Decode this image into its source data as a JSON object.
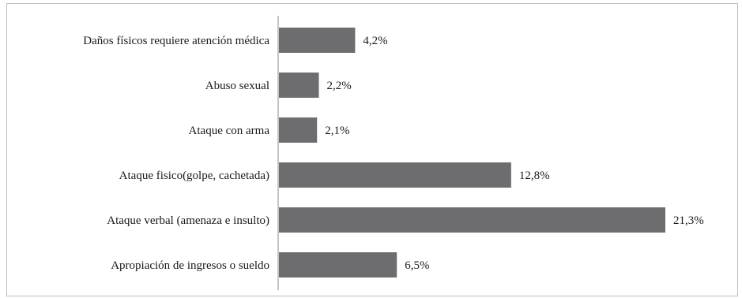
{
  "chart_data": {
    "type": "bar",
    "orientation": "horizontal",
    "categories": [
      "Daños físicos requiere atención médica",
      "Abuso sexual",
      "Ataque con arma",
      "Ataque fisico(golpe, cachetada)",
      "Ataque verbal (amenaza e insulto)",
      "Apropiación de ingresos o sueldo"
    ],
    "values": [
      4.2,
      2.2,
      2.1,
      12.8,
      21.3,
      6.5
    ],
    "data_labels": [
      "4,2%",
      "2,2%",
      "2,1%",
      "12,8%",
      "21,3%",
      "6,5%"
    ],
    "title": "",
    "xlabel": "",
    "ylabel": "",
    "xlim": [
      0,
      21.3
    ],
    "grid": false,
    "legend": "none",
    "bar_color": "#6d6d6f"
  }
}
